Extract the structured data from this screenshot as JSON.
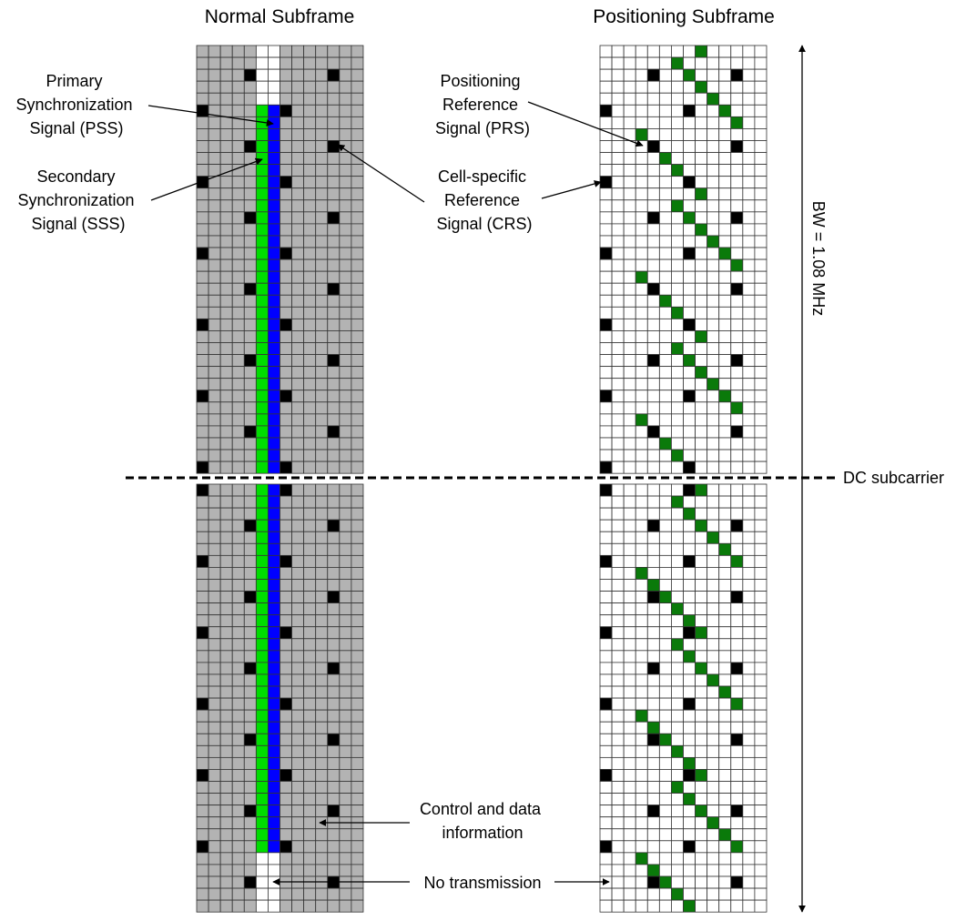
{
  "titles": {
    "left": "Normal Subframe",
    "right": "Positioning Subframe"
  },
  "labels": {
    "pss": [
      "Primary",
      "Synchronization",
      "Signal (PSS)"
    ],
    "sss": [
      "Secondary",
      "Synchronization",
      "Signal (SSS)"
    ],
    "prs": [
      "Positioning",
      "Reference",
      "Signal (PRS)"
    ],
    "crs": [
      "Cell-specific",
      "Reference",
      "Signal (CRS)"
    ],
    "control": [
      "Control and data",
      "information"
    ],
    "no_tx": "No transmission",
    "dc": "DC subcarrier",
    "bw": "BW = 1.08 MHz"
  },
  "colors": {
    "grid_line": "#333333",
    "normal_fill": "#b3b3b3",
    "empty_fill": "#ffffff",
    "pss": "#0000ff",
    "sss": "#00dd00",
    "crs": "#000000",
    "prs": "#0a7a0a"
  },
  "grid": {
    "columns": 14,
    "subcarriers_per_half": 36,
    "pss_symbol": 6,
    "sss_symbol": 5,
    "crs_symbols_a": [
      0,
      7
    ],
    "crs_symbols_b": [
      4,
      11
    ],
    "prs_symbols_control_region_excluded": [
      0,
      1,
      2
    ]
  }
}
